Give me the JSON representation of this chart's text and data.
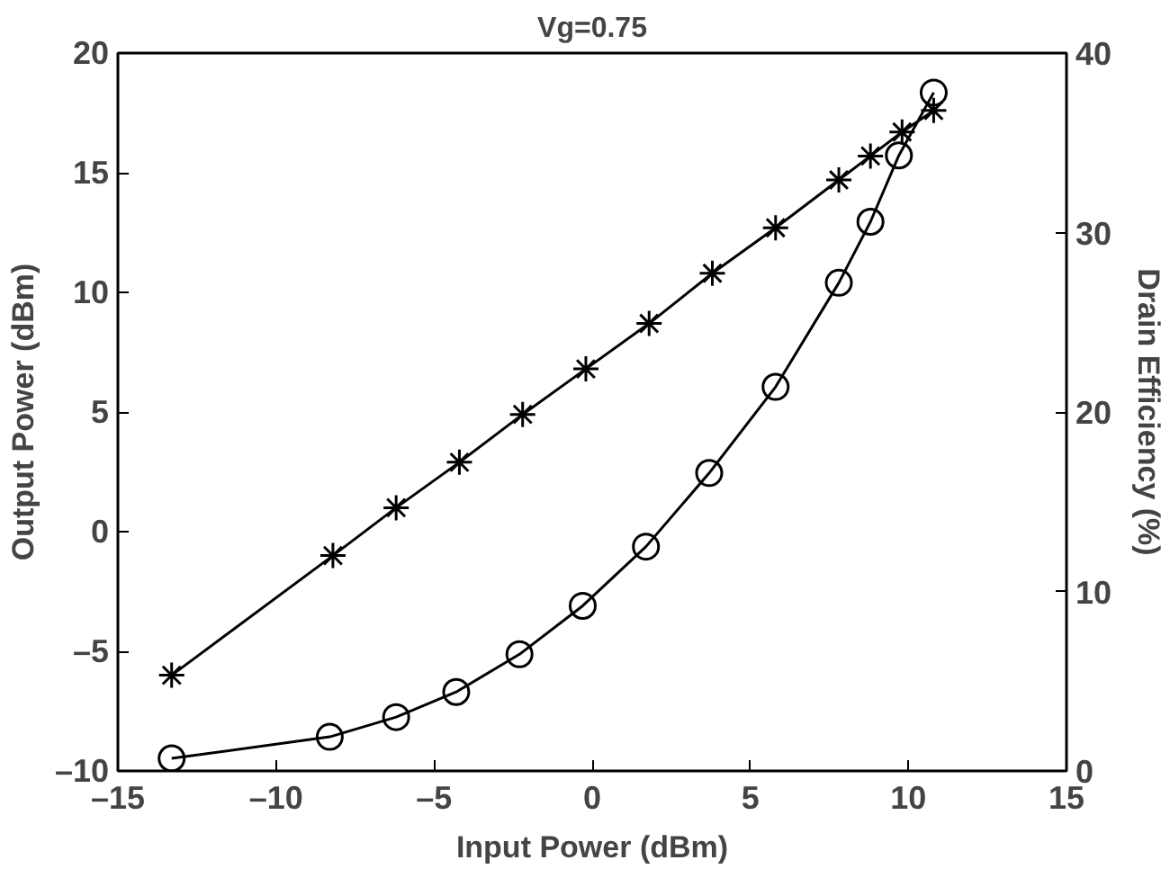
{
  "chart_data": {
    "type": "line",
    "title": "Vg=0.75",
    "xlabel": "Input Power (dBm)",
    "ylabel": "Output Power (dBm)",
    "y2label": "Drain Efficiency (%)",
    "xlim": [
      -15,
      15
    ],
    "xticks": [
      {
        "value": -15,
        "label": "–15"
      },
      {
        "value": -10,
        "label": "–10"
      },
      {
        "value": -5,
        "label": "–5"
      },
      0,
      5,
      10,
      15
    ],
    "ylim": [
      -10,
      20
    ],
    "yticks": [
      {
        "value": -10,
        "label": "–10"
      },
      {
        "value": -5,
        "label": "–5"
      },
      0,
      5,
      10,
      15,
      20
    ],
    "y2lim": [
      0,
      40
    ],
    "y2ticks": [
      0,
      10,
      20,
      30,
      40
    ],
    "grid": false,
    "line_style": "solid",
    "series": [
      {
        "color": "#000000",
        "marker": "cross",
        "x": [
          -13.3,
          -8.2,
          -6.2,
          -4.2,
          -2.2,
          -0.2,
          1.8,
          3.8,
          5.8,
          7.8,
          8.8,
          9.8,
          10.8
        ],
        "values": [
          -6.0,
          -1.0,
          1.0,
          2.9,
          4.9,
          6.8,
          8.7,
          10.8,
          12.7,
          14.7,
          15.7,
          16.7,
          17.6
        ]
      },
      {
        "color": "#000000",
        "marker": "circle",
        "axis": "y2",
        "x": [
          -13.3,
          -8.3,
          -6.2,
          -4.3,
          -2.3,
          -0.3,
          1.7,
          3.7,
          5.8,
          7.8,
          8.8,
          9.7,
          10.8
        ],
        "values": [
          0.7,
          1.9,
          3.0,
          4.4,
          6.5,
          9.2,
          12.5,
          16.6,
          21.4,
          27.2,
          30.6,
          34.3,
          37.8
        ]
      }
    ]
  }
}
